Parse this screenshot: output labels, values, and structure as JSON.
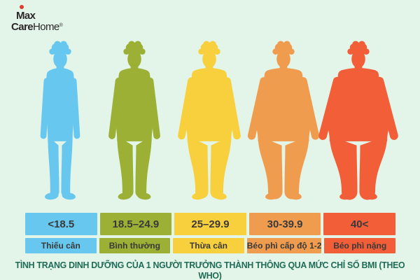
{
  "background": "#E3F5E9",
  "logo": {
    "line1": "Max",
    "line2_bold": "Care",
    "line2_light": "Home",
    "mark": "®",
    "dot_color": "#E23B2E",
    "text_color": "#2B2728"
  },
  "title": {
    "text": "TÌNH TRẠNG DINH DƯỠNG CỦA 1 NGƯỜI TRƯỞNG THÀNH THÔNG QUA MỨC CHỈ SỐ BMI (THEO WHO)",
    "color": "#1F6B58"
  },
  "table_text_color": "#393939",
  "categories": [
    {
      "name": "underweight",
      "bmi_range": "<18.5",
      "label": "Thiếu cân",
      "color": "#67C7EF",
      "body_scale": 0
    },
    {
      "name": "normal",
      "bmi_range": "18.5–24.9",
      "label": "Bình thường",
      "color": "#9BB034",
      "body_scale": 0.3
    },
    {
      "name": "overweight",
      "bmi_range": "25–29.9",
      "label": "Thừa cân",
      "color": "#F8CF3C",
      "body_scale": 0.58
    },
    {
      "name": "obesity-grade-1-2",
      "bmi_range": "30-39.9",
      "label": "Béo phì cấp độ 1-2",
      "color": "#F09C4F",
      "body_scale": 0.8
    },
    {
      "name": "severe-obesity",
      "bmi_range": "40<",
      "label": "Béo phì nặng",
      "color": "#F15E38",
      "body_scale": 1
    }
  ]
}
